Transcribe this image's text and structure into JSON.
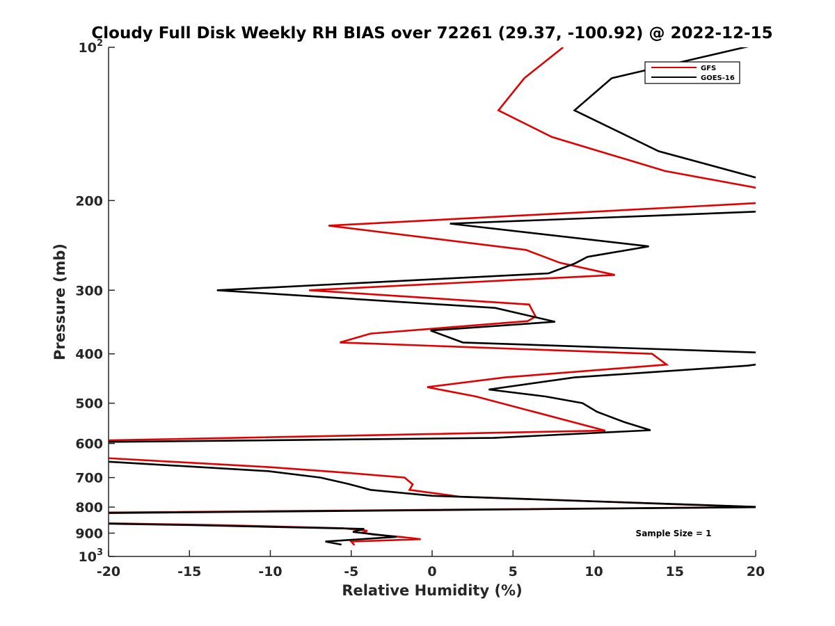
{
  "chart_data": {
    "type": "line",
    "title": "Cloudy Full Disk Weekly RH BIAS over 72261 (29.37, -100.92) @ 2022-12-15",
    "xlabel": "Relative Humidity (%)",
    "ylabel": "Pressure (mb)",
    "xlim": [
      -20,
      20
    ],
    "ylim": [
      100,
      1000
    ],
    "y_scale": "log",
    "y_reversed": true,
    "grid": false,
    "legend_position": "top-right",
    "x_ticks": [
      -20,
      -15,
      -10,
      -5,
      0,
      5,
      10,
      15,
      20
    ],
    "x_tick_labels": [
      "-20",
      "-15",
      "-10",
      "-5",
      "0",
      "5",
      "10",
      "15",
      "20"
    ],
    "y_ticks": [
      {
        "value": 100,
        "base": "10",
        "exp": "2"
      },
      {
        "value": 200,
        "base": "200",
        "exp": ""
      },
      {
        "value": 300,
        "base": "300",
        "exp": ""
      },
      {
        "value": 400,
        "base": "400",
        "exp": ""
      },
      {
        "value": 500,
        "base": "500",
        "exp": ""
      },
      {
        "value": 600,
        "base": "600",
        "exp": ""
      },
      {
        "value": 700,
        "base": "700",
        "exp": ""
      },
      {
        "value": 800,
        "base": "800",
        "exp": ""
      },
      {
        "value": 900,
        "base": "900",
        "exp": ""
      },
      {
        "value": 1000,
        "base": "10",
        "exp": "3"
      }
    ],
    "series": [
      {
        "name": "GFS",
        "color": "#e00000",
        "points": [
          [
            8.1,
            100
          ],
          [
            5.7,
            115
          ],
          [
            4.1,
            133
          ],
          [
            7.4,
            150
          ],
          [
            14.4,
            175
          ],
          [
            20.5,
            190
          ],
          [
            20.5,
            202
          ],
          [
            -6.4,
            224
          ],
          [
            5.8,
            250
          ],
          [
            7.9,
            265
          ],
          [
            11.3,
            280
          ],
          [
            -7.6,
            300
          ],
          [
            6.0,
            320
          ],
          [
            6.4,
            338
          ],
          [
            5.9,
            345
          ],
          [
            -3.8,
            365
          ],
          [
            -5.7,
            380
          ],
          [
            13.6,
            400
          ],
          [
            14.5,
            420
          ],
          [
            4.5,
            445
          ],
          [
            -0.3,
            465
          ],
          [
            2.7,
            485
          ],
          [
            10.7,
            566
          ],
          [
            -20.5,
            592
          ],
          [
            -20.5,
            640
          ],
          [
            -10.0,
            668
          ],
          [
            -5.3,
            685
          ],
          [
            -1.7,
            700
          ],
          [
            -1.2,
            722
          ],
          [
            -1.4,
            740
          ],
          [
            1.7,
            763
          ],
          [
            20.2,
            800
          ],
          [
            -20.5,
            820
          ],
          [
            -20.5,
            860
          ],
          [
            -13.0,
            868
          ],
          [
            -5.5,
            880
          ],
          [
            -4.0,
            890
          ],
          [
            -4.3,
            898
          ],
          [
            -3.7,
            905
          ],
          [
            -2.0,
            915
          ],
          [
            -0.7,
            925
          ],
          [
            -5.0,
            935
          ],
          [
            -4.8,
            950
          ]
        ]
      },
      {
        "name": "GOES-16",
        "color": "#000000",
        "points": [
          [
            20.5,
            98
          ],
          [
            11.1,
            115
          ],
          [
            8.8,
            133
          ],
          [
            14.0,
            160
          ],
          [
            20.5,
            182
          ],
          [
            20.5,
            210
          ],
          [
            1.1,
            222
          ],
          [
            13.4,
            246
          ],
          [
            9.6,
            258
          ],
          [
            8.8,
            266
          ],
          [
            7.2,
            278
          ],
          [
            -13.3,
            300
          ],
          [
            3.9,
            325
          ],
          [
            7.6,
            346
          ],
          [
            -0.1,
            360
          ],
          [
            1.9,
            380
          ],
          [
            20.5,
            398
          ],
          [
            20.5,
            418
          ],
          [
            19.5,
            422
          ],
          [
            8.8,
            445
          ],
          [
            3.5,
            470
          ],
          [
            7.0,
            485
          ],
          [
            9.3,
            500
          ],
          [
            10.2,
            520
          ],
          [
            11.9,
            545
          ],
          [
            13.5,
            565
          ],
          [
            3.8,
            585
          ],
          [
            -20.5,
            596
          ],
          [
            -20.5,
            650
          ],
          [
            -10.1,
            680
          ],
          [
            -6.9,
            700
          ],
          [
            -5.2,
            720
          ],
          [
            -3.8,
            740
          ],
          [
            0.0,
            760
          ],
          [
            20.5,
            800
          ],
          [
            -20.5,
            822
          ],
          [
            -20.5,
            862
          ],
          [
            -14.8,
            868
          ],
          [
            -4.2,
            883
          ],
          [
            -4.9,
            895
          ],
          [
            -2.2,
            915
          ],
          [
            -6.6,
            935
          ],
          [
            -5.6,
            948
          ]
        ]
      }
    ],
    "annotations": [
      {
        "text": "Sample Size = 1"
      }
    ]
  }
}
